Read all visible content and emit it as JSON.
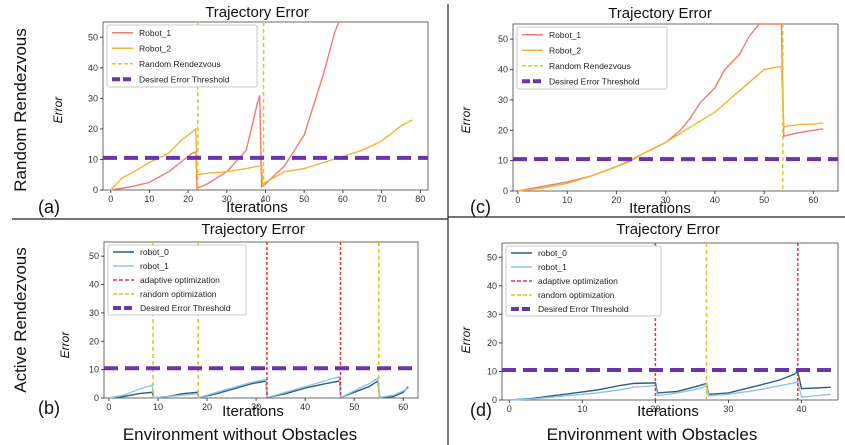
{
  "row_labels": [
    "Random Rendezvous",
    "Active Rendezvous"
  ],
  "footer": [
    "Environment without Obstacles",
    "Environment with Obstacles"
  ],
  "colors": {
    "robot_1_top": "#f07b6e",
    "robot_2_top": "#f7b332",
    "rendezvous": "#d4cc2a",
    "threshold": "#6d33a8",
    "robot_0": "#2f5f7f",
    "robot_1": "#8dc4e8",
    "adaptive": "#e8382c",
    "random_opt": "#cfc82a"
  },
  "chart_data": [
    {
      "panel": "(a)",
      "type": "line",
      "title": "Trajectory Error",
      "xlabel": "Iterations",
      "ylabel": "Error",
      "xlim": [
        -2,
        82
      ],
      "ylim": [
        0,
        55
      ],
      "xticks": [
        0,
        10,
        20,
        30,
        40,
        50,
        60,
        70,
        80
      ],
      "yticks": [
        0,
        10,
        20,
        30,
        40,
        50
      ],
      "legend_position": "upper-left",
      "series": [
        {
          "name": "Robot_1",
          "style": "line",
          "color": "#f07b6e",
          "x": [
            0,
            5,
            10,
            15,
            18,
            20,
            21,
            22,
            22.3,
            25,
            30,
            35,
            38,
            38.5,
            39,
            40,
            45,
            50,
            55,
            58,
            59
          ],
          "y": [
            0,
            1,
            2.5,
            6,
            9,
            11,
            12,
            12.5,
            0.5,
            2,
            6,
            13,
            29,
            31,
            1,
            2,
            8,
            18,
            38,
            52,
            56
          ]
        },
        {
          "name": "Robot_2",
          "style": "line",
          "color": "#f7b332",
          "x": [
            0,
            3,
            6,
            10,
            15,
            18,
            21,
            22,
            22.3,
            25,
            30,
            35,
            39,
            39.3,
            45,
            50,
            55,
            60,
            65,
            70,
            75,
            78
          ],
          "y": [
            0,
            4,
            6,
            9,
            12,
            16,
            19,
            20,
            5,
            5.5,
            6,
            7,
            8,
            2,
            6,
            7,
            9,
            11,
            13,
            16,
            21,
            23
          ]
        },
        {
          "name": "Random Rendezvous",
          "style": "vline",
          "color": "#d4cc2a",
          "x": [
            22.5,
            39.5
          ]
        },
        {
          "name": "Desired Error Threshold",
          "style": "hline",
          "color": "#6d33a8",
          "y": 10.5
        }
      ]
    },
    {
      "panel": "(c)",
      "type": "line",
      "title": "Trajectory Error",
      "xlabel": "Iterations",
      "ylabel": "Error",
      "xlim": [
        -1,
        65
      ],
      "ylim": [
        0,
        55
      ],
      "xticks": [
        0,
        10,
        20,
        30,
        40,
        50,
        60
      ],
      "yticks": [
        0,
        10,
        20,
        30,
        40,
        50
      ],
      "legend_position": "upper-left",
      "series": [
        {
          "name": "Robot_1",
          "style": "line",
          "color": "#f07b6e",
          "x": [
            0,
            5,
            10,
            15,
            20,
            23,
            25,
            30,
            33,
            35,
            37,
            40,
            42,
            45,
            47,
            49,
            53.5,
            54,
            55,
            58,
            60,
            62
          ],
          "y": [
            0,
            1.5,
            3,
            5,
            8,
            10,
            12,
            16,
            20,
            24,
            29,
            34,
            40,
            45,
            51,
            56,
            56,
            18,
            18.5,
            19.5,
            20,
            20.5
          ]
        },
        {
          "name": "Robot_2",
          "style": "line",
          "color": "#f7b332",
          "x": [
            0,
            5,
            10,
            15,
            20,
            25,
            30,
            35,
            40,
            45,
            50,
            53.5,
            54,
            55,
            58,
            60,
            62
          ],
          "y": [
            0,
            1,
            2.5,
            5,
            8,
            12,
            16,
            21,
            26,
            33,
            40,
            41,
            21,
            21.5,
            22,
            22,
            22.5
          ]
        },
        {
          "name": "Random Rendezvous",
          "style": "vline",
          "color": "#d4cc2a",
          "x": [
            53.8
          ]
        },
        {
          "name": "Desired Error Threshold",
          "style": "hline",
          "color": "#6d33a8",
          "y": 10.5
        }
      ]
    },
    {
      "panel": "(b)",
      "type": "line",
      "title": "Trajectory Error",
      "xlabel": "Iterations",
      "ylabel": "Error",
      "xlim": [
        -1,
        63
      ],
      "ylim": [
        0,
        55
      ],
      "xticks": [
        0,
        10,
        20,
        30,
        40,
        50,
        60
      ],
      "yticks": [
        0,
        10,
        20,
        30,
        40,
        50
      ],
      "legend_position": "upper-left",
      "series": [
        {
          "name": "robot_0",
          "style": "line",
          "color": "#2f5f7f",
          "x": [
            0,
            3,
            6,
            8.8,
            9.2,
            12,
            15,
            18,
            18.3,
            22,
            26,
            29,
            32,
            32.3,
            36,
            40,
            44,
            47,
            47.3,
            50,
            53,
            54.8,
            55.2,
            58,
            60,
            61
          ],
          "y": [
            0,
            0.5,
            1.5,
            2,
            0.1,
            0.5,
            1.5,
            2,
            0.1,
            1.5,
            3.5,
            5,
            6,
            0.2,
            1.5,
            3.5,
            5,
            6,
            0.2,
            2,
            4,
            6,
            0.2,
            0.5,
            2,
            4
          ]
        },
        {
          "name": "robot_1",
          "style": "line",
          "color": "#8dc4e8",
          "x": [
            0,
            3,
            6,
            8.8,
            9.2,
            12,
            15,
            18,
            18.3,
            22,
            26,
            29,
            32,
            32.3,
            36,
            40,
            44,
            47,
            47.3,
            50,
            53,
            54.8,
            55.2,
            58,
            60,
            61
          ],
          "y": [
            0,
            1,
            3,
            4.5,
            0.1,
            0.5,
            1,
            1.5,
            0.1,
            2,
            4,
            5.5,
            6.5,
            0.2,
            2,
            4,
            6,
            7.5,
            0.2,
            2.5,
            5,
            7,
            0.2,
            1,
            2.5,
            3.5
          ]
        },
        {
          "name": "adaptive optimization",
          "style": "vline",
          "color": "#e8382c",
          "x": [
            32.2,
            47.2
          ]
        },
        {
          "name": "random optimization",
          "style": "vline",
          "color": "#cfc82a",
          "x": [
            9,
            18.2,
            55
          ]
        },
        {
          "name": "Desired Error Threshold",
          "style": "hline",
          "color": "#6d33a8",
          "y": 10.5
        }
      ]
    },
    {
      "panel": "(d)",
      "type": "line",
      "title": "Trajectory Error",
      "xlabel": "Iterations",
      "ylabel": "Error",
      "xlim": [
        -1,
        45
      ],
      "ylim": [
        0,
        55
      ],
      "xticks": [
        0,
        10,
        20,
        30,
        40
      ],
      "yticks": [
        0,
        10,
        20,
        30,
        40,
        50
      ],
      "legend_position": "upper-left",
      "series": [
        {
          "name": "robot_0",
          "style": "line",
          "color": "#2f5f7f",
          "x": [
            0,
            3,
            6,
            9,
            12,
            15,
            17,
            20,
            20.3,
            23,
            26,
            27,
            27.3,
            30,
            34,
            37,
            39,
            39.5,
            40,
            42,
            44
          ],
          "y": [
            0,
            0.5,
            1.5,
            2.5,
            3.5,
            5,
            5.8,
            6,
            2.5,
            3,
            5,
            5.8,
            2,
            2.5,
            5,
            7,
            9,
            10,
            4,
            4.2,
            4.5
          ]
        },
        {
          "name": "robot_1",
          "style": "line",
          "color": "#8dc4e8",
          "x": [
            0,
            3,
            6,
            9,
            12,
            15,
            17,
            20,
            20.3,
            23,
            26,
            27,
            27.3,
            30,
            34,
            37,
            39,
            39.5,
            40,
            42,
            44
          ],
          "y": [
            0,
            0.3,
            1,
            1.8,
            2.5,
            3.5,
            4.5,
            5,
            1.5,
            2.5,
            4,
            5,
            1.5,
            2,
            3.5,
            5,
            6,
            6.5,
            1,
            1.5,
            2
          ]
        },
        {
          "name": "adaptive optimization",
          "style": "vline",
          "color": "#e8382c",
          "x": [
            20,
            39.5
          ]
        },
        {
          "name": "random optimization",
          "style": "vline",
          "color": "#cfc82a",
          "x": [
            27
          ]
        },
        {
          "name": "Desired Error Threshold",
          "style": "hline",
          "color": "#6d33a8",
          "y": 10.5
        }
      ]
    }
  ]
}
